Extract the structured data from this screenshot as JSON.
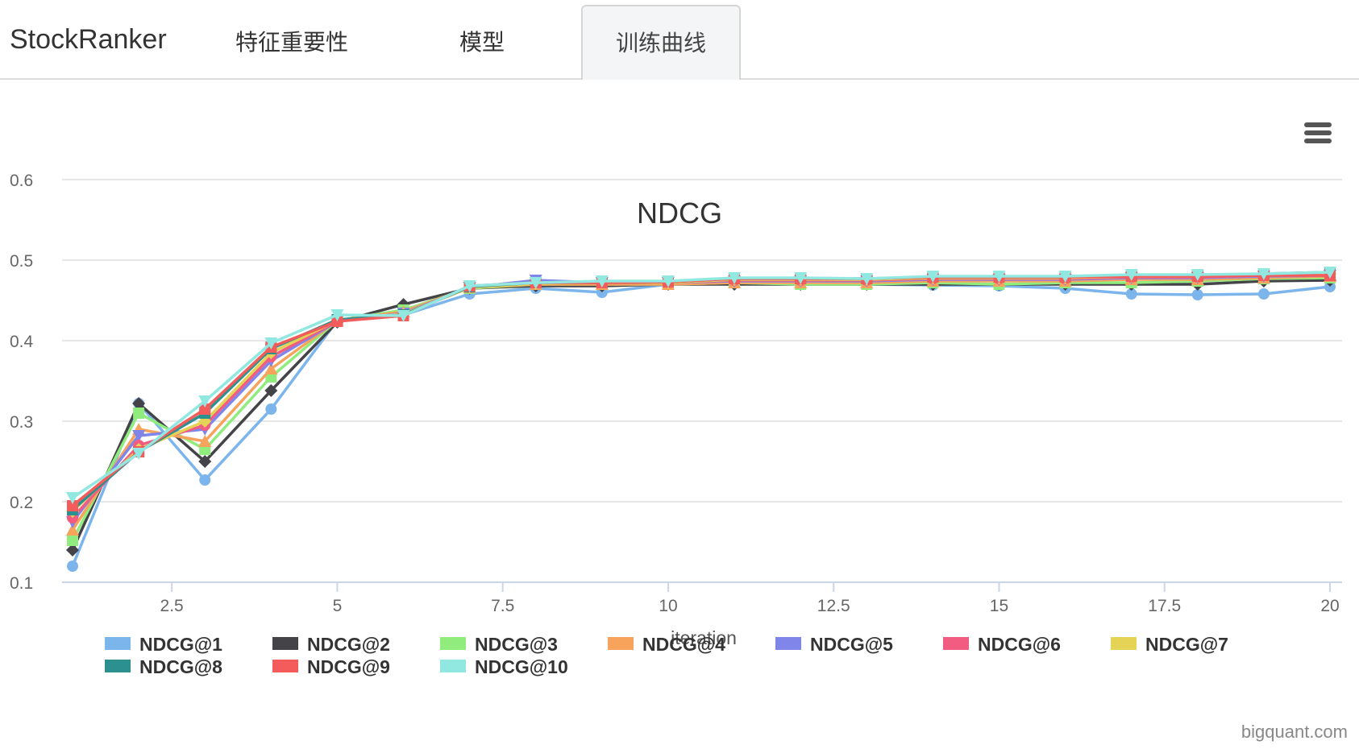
{
  "header": {
    "brand": "StockRanker",
    "tabs": [
      {
        "label": "特征重要性",
        "active": false
      },
      {
        "label": "模型",
        "active": false
      },
      {
        "label": "训练曲线",
        "active": true
      }
    ]
  },
  "menu_icon": "hamburger-menu-icon",
  "credit": "bigquant.com",
  "chart_data": {
    "type": "line",
    "title": "NDCG",
    "xlabel": "iteration",
    "ylabel": "",
    "xlim": [
      1,
      20
    ],
    "ylim": [
      0.1,
      0.6
    ],
    "xticks": [
      2.5,
      5,
      7.5,
      10,
      12.5,
      15,
      17.5,
      20
    ],
    "xtick_labels": [
      "2.5",
      "5",
      "7.5",
      "10",
      "12.5",
      "15",
      "17.5",
      "20"
    ],
    "yticks": [
      0.1,
      0.2,
      0.3,
      0.4,
      0.5,
      0.6
    ],
    "ytick_labels": [
      "0.1",
      "0.2",
      "0.3",
      "0.4",
      "0.5",
      "0.6"
    ],
    "grid": true,
    "legend_position": "bottom",
    "x": [
      1,
      2,
      3,
      4,
      5,
      6,
      7,
      8,
      9,
      10,
      11,
      12,
      13,
      14,
      15,
      16,
      17,
      18,
      19,
      20
    ],
    "series": [
      {
        "name": "NDCG@1",
        "color": "#7cb5ec",
        "marker": "circle",
        "values": [
          0.12,
          0.322,
          0.227,
          0.315,
          0.425,
          0.432,
          0.458,
          0.465,
          0.46,
          0.47,
          0.473,
          0.47,
          0.47,
          0.469,
          0.468,
          0.465,
          0.458,
          0.457,
          0.458,
          0.467
        ]
      },
      {
        "name": "NDCG@2",
        "color": "#434348",
        "marker": "diamond",
        "values": [
          0.14,
          0.322,
          0.25,
          0.338,
          0.423,
          0.445,
          0.465,
          0.468,
          0.468,
          0.47,
          0.47,
          0.47,
          0.47,
          0.47,
          0.47,
          0.47,
          0.47,
          0.47,
          0.474,
          0.475
        ]
      },
      {
        "name": "NDCG@3",
        "color": "#90ed7d",
        "marker": "square",
        "values": [
          0.152,
          0.31,
          0.265,
          0.355,
          0.425,
          0.438,
          0.465,
          0.47,
          0.47,
          0.47,
          0.472,
          0.47,
          0.47,
          0.472,
          0.47,
          0.472,
          0.472,
          0.474,
          0.477,
          0.478
        ]
      },
      {
        "name": "NDCG@4",
        "color": "#f7a35c",
        "marker": "triangle",
        "values": [
          0.165,
          0.29,
          0.275,
          0.365,
          0.425,
          0.436,
          0.466,
          0.47,
          0.47,
          0.47,
          0.472,
          0.472,
          0.472,
          0.474,
          0.474,
          0.474,
          0.476,
          0.476,
          0.478,
          0.48
        ]
      },
      {
        "name": "NDCG@5",
        "color": "#8085e9",
        "marker": "triangle-down",
        "values": [
          0.175,
          0.282,
          0.29,
          0.375,
          0.424,
          0.434,
          0.466,
          0.475,
          0.472,
          0.472,
          0.474,
          0.474,
          0.474,
          0.476,
          0.476,
          0.476,
          0.478,
          0.478,
          0.48,
          0.481
        ]
      },
      {
        "name": "NDCG@6",
        "color": "#f15c80",
        "marker": "circle",
        "values": [
          0.18,
          0.27,
          0.295,
          0.38,
          0.424,
          0.433,
          0.466,
          0.472,
          0.472,
          0.472,
          0.475,
          0.475,
          0.475,
          0.477,
          0.477,
          0.477,
          0.479,
          0.479,
          0.481,
          0.482
        ]
      },
      {
        "name": "NDCG@7",
        "color": "#e4d354",
        "marker": "diamond",
        "values": [
          0.188,
          0.265,
          0.3,
          0.385,
          0.425,
          0.433,
          0.466,
          0.471,
          0.472,
          0.472,
          0.476,
          0.476,
          0.476,
          0.478,
          0.478,
          0.478,
          0.48,
          0.48,
          0.482,
          0.483
        ]
      },
      {
        "name": "NDCG@8",
        "color": "#2b908f",
        "marker": "square",
        "values": [
          0.19,
          0.262,
          0.31,
          0.39,
          0.426,
          0.432,
          0.467,
          0.472,
          0.472,
          0.473,
          0.477,
          0.477,
          0.477,
          0.479,
          0.479,
          0.479,
          0.481,
          0.481,
          0.483,
          0.485
        ]
      },
      {
        "name": "NDCG@9",
        "color": "#f45b5b",
        "marker": "square",
        "values": [
          0.195,
          0.262,
          0.315,
          0.392,
          0.424,
          0.431,
          0.468,
          0.472,
          0.472,
          0.473,
          0.477,
          0.477,
          0.477,
          0.479,
          0.479,
          0.479,
          0.48,
          0.48,
          0.481,
          0.481
        ]
      },
      {
        "name": "NDCG@10",
        "color": "#91e8e1",
        "marker": "triangle-down",
        "values": [
          0.205,
          0.26,
          0.325,
          0.397,
          0.432,
          0.431,
          0.468,
          0.472,
          0.474,
          0.474,
          0.478,
          0.478,
          0.477,
          0.48,
          0.48,
          0.48,
          0.482,
          0.482,
          0.483,
          0.485
        ]
      }
    ]
  }
}
